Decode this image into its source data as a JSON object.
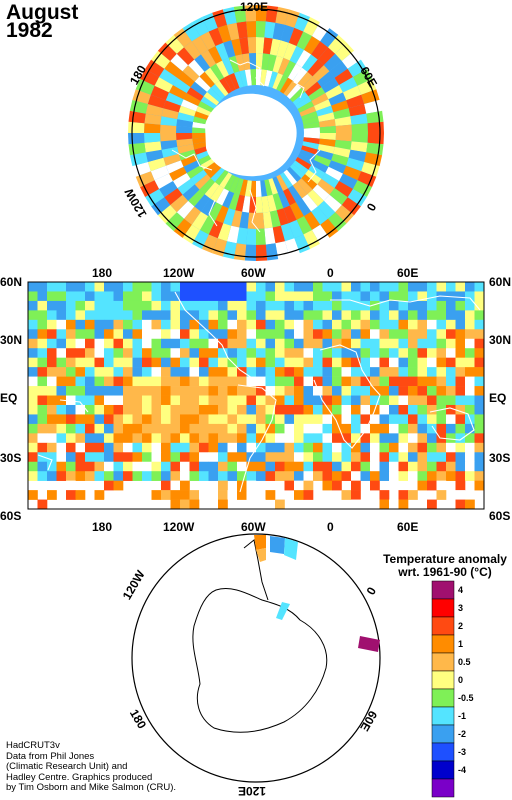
{
  "title": {
    "month": "August",
    "year": "1982"
  },
  "north_polar": {
    "labels": {
      "top": "120E",
      "left": "180",
      "right": "60E",
      "lower_left": "120W",
      "lower_right": "0"
    }
  },
  "world_map": {
    "lat_labels": [
      "60N",
      "30N",
      "EQ",
      "30S",
      "60S"
    ],
    "lon_labels": [
      "180",
      "120W",
      "60W",
      "0",
      "60E"
    ]
  },
  "south_polar": {
    "labels": {
      "top_left": "120W",
      "top_right": "0",
      "left": "180",
      "right": "60E",
      "bottom": "120E",
      "top": "60W"
    }
  },
  "legend": {
    "title_line1": "Temperature anomaly",
    "title_line2": "wrt. 1961-90  (°C)",
    "bins": [
      {
        "label": "4",
        "color": "#a0106f"
      },
      {
        "label": "3",
        "color": "#ff0000"
      },
      {
        "label": "2",
        "color": "#ff4a12"
      },
      {
        "label": "1",
        "color": "#ff8c00"
      },
      {
        "label": "0.5",
        "color": "#ffb84a"
      },
      {
        "label": "0",
        "color": "#ffff80"
      },
      {
        "label": "-0.5",
        "color": "#7ff057"
      },
      {
        "label": "-1",
        "color": "#54e4ff"
      },
      {
        "label": "-2",
        "color": "#3aa0f0"
      },
      {
        "label": "-3",
        "color": "#1e50ff"
      },
      {
        "label": "-4",
        "color": "#0000cc"
      },
      {
        "label": "",
        "color": "#7a00c8"
      }
    ]
  },
  "credit": {
    "line1": "HadCRUT3v",
    "line2": "Data from Phil Jones",
    "line3": "(Climatic Research Unit) and",
    "line4": "Hadley Centre.  Graphics produced",
    "line5": "by Tim Osborn and Mike Salmon (CRU)."
  }
}
